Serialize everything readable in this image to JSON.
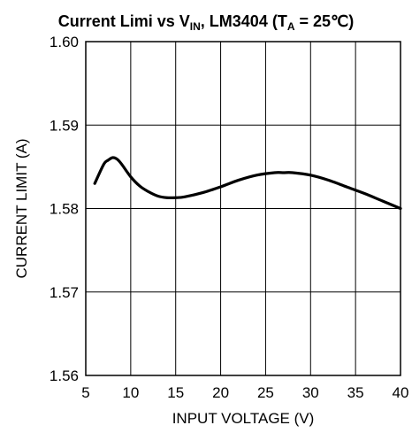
{
  "chart_data": {
    "type": "line",
    "title": {
      "part1": "Current Limi vs V",
      "sub1": "IN",
      "part2": ", LM3404 (T",
      "sub2": "A",
      "part3": " = 25℃)"
    },
    "xlabel": "INPUT VOLTAGE (V)",
    "ylabel": "CURRENT LIMIT (A)",
    "xlim": [
      5,
      40
    ],
    "ylim": [
      1.56,
      1.6
    ],
    "x_ticks": [
      "5",
      "10",
      "15",
      "20",
      "25",
      "30",
      "35",
      "40"
    ],
    "y_ticks": [
      "1.60",
      "1.59",
      "1.58",
      "1.57",
      "1.56"
    ],
    "grid": true,
    "series": [
      {
        "x": [
          6,
          7,
          7.5,
          8,
          8.5,
          9,
          10,
          11,
          12,
          13,
          14,
          15,
          16,
          18,
          20,
          22,
          24,
          26,
          27,
          28,
          30,
          32,
          34,
          36,
          38,
          40
        ],
        "y": [
          1.583,
          1.5853,
          1.5858,
          1.5861,
          1.5859,
          1.5853,
          1.5838,
          1.5827,
          1.582,
          1.5815,
          1.5813,
          1.5813,
          1.5814,
          1.5819,
          1.5826,
          1.5834,
          1.584,
          1.5843,
          1.5843,
          1.5843,
          1.584,
          1.5834,
          1.5826,
          1.5818,
          1.5809,
          1.58
        ]
      }
    ]
  },
  "colors": {
    "line": "#000000",
    "grid": "#000000",
    "background": "#ffffff"
  }
}
